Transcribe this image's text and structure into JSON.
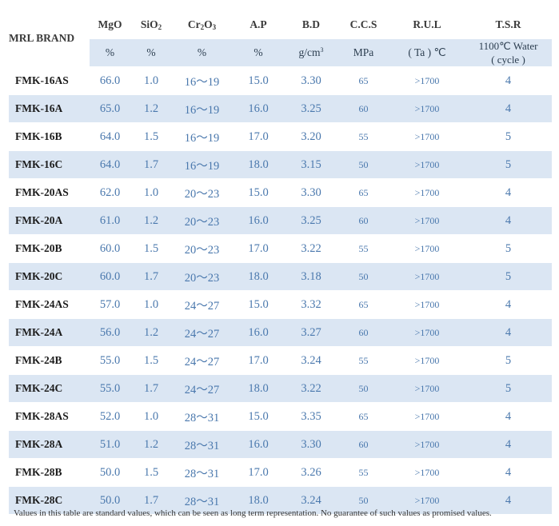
{
  "columns": {
    "brand": "MRL BRAND",
    "mgo": "MgO",
    "sio2_base": "SiO",
    "sio2_sub": "2",
    "cr2o3_a": "Cr",
    "cr2o3_sub1": "2",
    "cr2o3_b": "O",
    "cr2o3_sub2": "3",
    "ap": "A.P",
    "bd": "B.D",
    "ccs": "C.C.S",
    "rul": "R.U.L",
    "tsr": "T.S.R"
  },
  "units": {
    "mgo": "%",
    "sio2": "%",
    "cr2o3": "%",
    "ap": "%",
    "bd_base": "g/cm",
    "bd_sup": "3",
    "ccs": "MPa",
    "rul": "( Ta ) ℃",
    "tsr_line1": "1100℃ Water",
    "tsr_line2": "( cycle )"
  },
  "rows": [
    {
      "brand": "FMK-16AS",
      "mgo": "66.0",
      "sio2": "1.0",
      "cr2o3": "16～19",
      "ap": "15.0",
      "bd": "3.30",
      "ccs": "65",
      "rul": ">1700",
      "tsr": "4"
    },
    {
      "brand": "FMK-16A",
      "mgo": "65.0",
      "sio2": "1.2",
      "cr2o3": "16～19",
      "ap": "16.0",
      "bd": "3.25",
      "ccs": "60",
      "rul": ">1700",
      "tsr": "4"
    },
    {
      "brand": "FMK-16B",
      "mgo": "64.0",
      "sio2": "1.5",
      "cr2o3": "16～19",
      "ap": "17.0",
      "bd": "3.20",
      "ccs": "55",
      "rul": ">1700",
      "tsr": "5"
    },
    {
      "brand": "FMK-16C",
      "mgo": "64.0",
      "sio2": "1.7",
      "cr2o3": "16～19",
      "ap": "18.0",
      "bd": "3.15",
      "ccs": "50",
      "rul": ">1700",
      "tsr": "5"
    },
    {
      "brand": "FMK-20AS",
      "mgo": "62.0",
      "sio2": "1.0",
      "cr2o3": "20～23",
      "ap": "15.0",
      "bd": "3.30",
      "ccs": "65",
      "rul": ">1700",
      "tsr": "4"
    },
    {
      "brand": "FMK-20A",
      "mgo": "61.0",
      "sio2": "1.2",
      "cr2o3": "20～23",
      "ap": "16.0",
      "bd": "3.25",
      "ccs": "60",
      "rul": ">1700",
      "tsr": "4"
    },
    {
      "brand": "FMK-20B",
      "mgo": "60.0",
      "sio2": "1.5",
      "cr2o3": "20～23",
      "ap": "17.0",
      "bd": "3.22",
      "ccs": "55",
      "rul": ">1700",
      "tsr": "5"
    },
    {
      "brand": "FMK-20C",
      "mgo": "60.0",
      "sio2": "1.7",
      "cr2o3": "20～23",
      "ap": "18.0",
      "bd": "3.18",
      "ccs": "50",
      "rul": ">1700",
      "tsr": "5"
    },
    {
      "brand": "FMK-24AS",
      "mgo": "57.0",
      "sio2": "1.0",
      "cr2o3": "24～27",
      "ap": "15.0",
      "bd": "3.32",
      "ccs": "65",
      "rul": ">1700",
      "tsr": "4"
    },
    {
      "brand": "FMK-24A",
      "mgo": "56.0",
      "sio2": "1.2",
      "cr2o3": "24～27",
      "ap": "16.0",
      "bd": "3.27",
      "ccs": "60",
      "rul": ">1700",
      "tsr": "4"
    },
    {
      "brand": "FMK-24B",
      "mgo": "55.0",
      "sio2": "1.5",
      "cr2o3": "24～27",
      "ap": "17.0",
      "bd": "3.24",
      "ccs": "55",
      "rul": ">1700",
      "tsr": "5"
    },
    {
      "brand": "FMK-24C",
      "mgo": "55.0",
      "sio2": "1.7",
      "cr2o3": "24～27",
      "ap": "18.0",
      "bd": "3.22",
      "ccs": "50",
      "rul": ">1700",
      "tsr": "5"
    },
    {
      "brand": "FMK-28AS",
      "mgo": "52.0",
      "sio2": "1.0",
      "cr2o3": "28～31",
      "ap": "15.0",
      "bd": "3.35",
      "ccs": "65",
      "rul": ">1700",
      "tsr": "4"
    },
    {
      "brand": "FMK-28A",
      "mgo": "51.0",
      "sio2": "1.2",
      "cr2o3": "28～31",
      "ap": "16.0",
      "bd": "3.30",
      "ccs": "60",
      "rul": ">1700",
      "tsr": "4"
    },
    {
      "brand": "FMK-28B",
      "mgo": "50.0",
      "sio2": "1.5",
      "cr2o3": "28～31",
      "ap": "17.0",
      "bd": "3.26",
      "ccs": "55",
      "rul": ">1700",
      "tsr": "4"
    },
    {
      "brand": "FMK-28C",
      "mgo": "50.0",
      "sio2": "1.7",
      "cr2o3": "28～31",
      "ap": "18.0",
      "bd": "3.24",
      "ccs": "50",
      "rul": ">1700",
      "tsr": "4"
    }
  ],
  "note": "Values in this table are standard values, which can be seen as long term representation. No guarantee of such values as promised values.",
  "colors": {
    "band": "#dbe6f3",
    "value_text": "#4a78ad",
    "brand_text": "#1c1c1c"
  }
}
